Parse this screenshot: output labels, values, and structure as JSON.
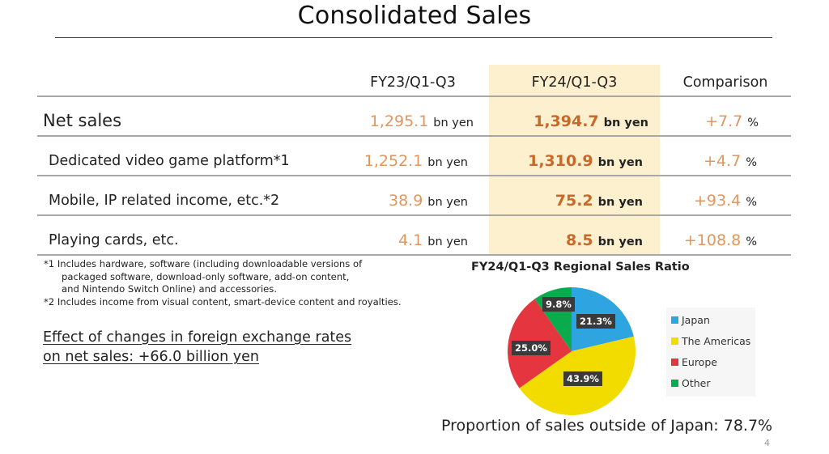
{
  "slide": {
    "title": "Consolidated Sales",
    "page_number": "4"
  },
  "table": {
    "headers": [
      "",
      "FY23/Q1-Q3",
      "FY24/Q1-Q3",
      "Comparison"
    ],
    "rows": [
      {
        "label": "Net sales",
        "fy23": "1,295.1",
        "fy23_unit": "bn yen",
        "fy24": "1,394.7",
        "fy24_unit": "bn yen",
        "comparison": "+7.7",
        "comparison_unit": "%"
      },
      {
        "label": "Dedicated video game platform*1",
        "fy23": "1,252.1",
        "fy23_unit": "bn yen",
        "fy24": "1,310.9",
        "fy24_unit": "bn yen",
        "comparison": "+4.7",
        "comparison_unit": "%"
      },
      {
        "label": "Mobile, IP related income, etc.*2",
        "fy23": "38.9",
        "fy23_unit": "bn yen",
        "fy24": "75.2",
        "fy24_unit": "bn yen",
        "comparison": "+93.4",
        "comparison_unit": "%"
      },
      {
        "label": "Playing cards, etc.",
        "fy23": "4.1",
        "fy23_unit": "bn yen",
        "fy24": "8.5",
        "fy24_unit": "bn yen",
        "comparison": "+108.8",
        "comparison_unit": "%"
      }
    ],
    "highlight_color": "#fdf0cf",
    "value_color_fy23": "#e2965c",
    "value_color_fy24": "#c8692a"
  },
  "footnotes": [
    "*1 Includes hardware, software (including downloadable versions of",
    "packaged software, download-only software, add-on content,",
    "and Nintendo Switch Online) and accessories.",
    "*2 Includes income from visual content, smart-device content and royalties."
  ],
  "fx_effect": {
    "line1": "Effect of changes in foreign exchange rates",
    "line2": "on net sales: +66.0 billion yen"
  },
  "chart_data": {
    "type": "pie",
    "title": "FY24/Q1-Q3 Regional Sales Ratio",
    "categories": [
      "Japan",
      "The Americas",
      "Europe",
      "Other"
    ],
    "values": [
      21.3,
      43.9,
      25.0,
      9.8
    ],
    "labels": [
      "21.3%",
      "43.9%",
      "25.0%",
      "9.8%"
    ],
    "colors": [
      "#2ea5e0",
      "#f2dc00",
      "#e5353f",
      "#0aab4c"
    ],
    "legend_position": "right",
    "start_angle": "12 o'clock, clockwise"
  },
  "summary": {
    "proportion_outside_japan": "Proportion of sales outside of Japan: 78.7%"
  }
}
